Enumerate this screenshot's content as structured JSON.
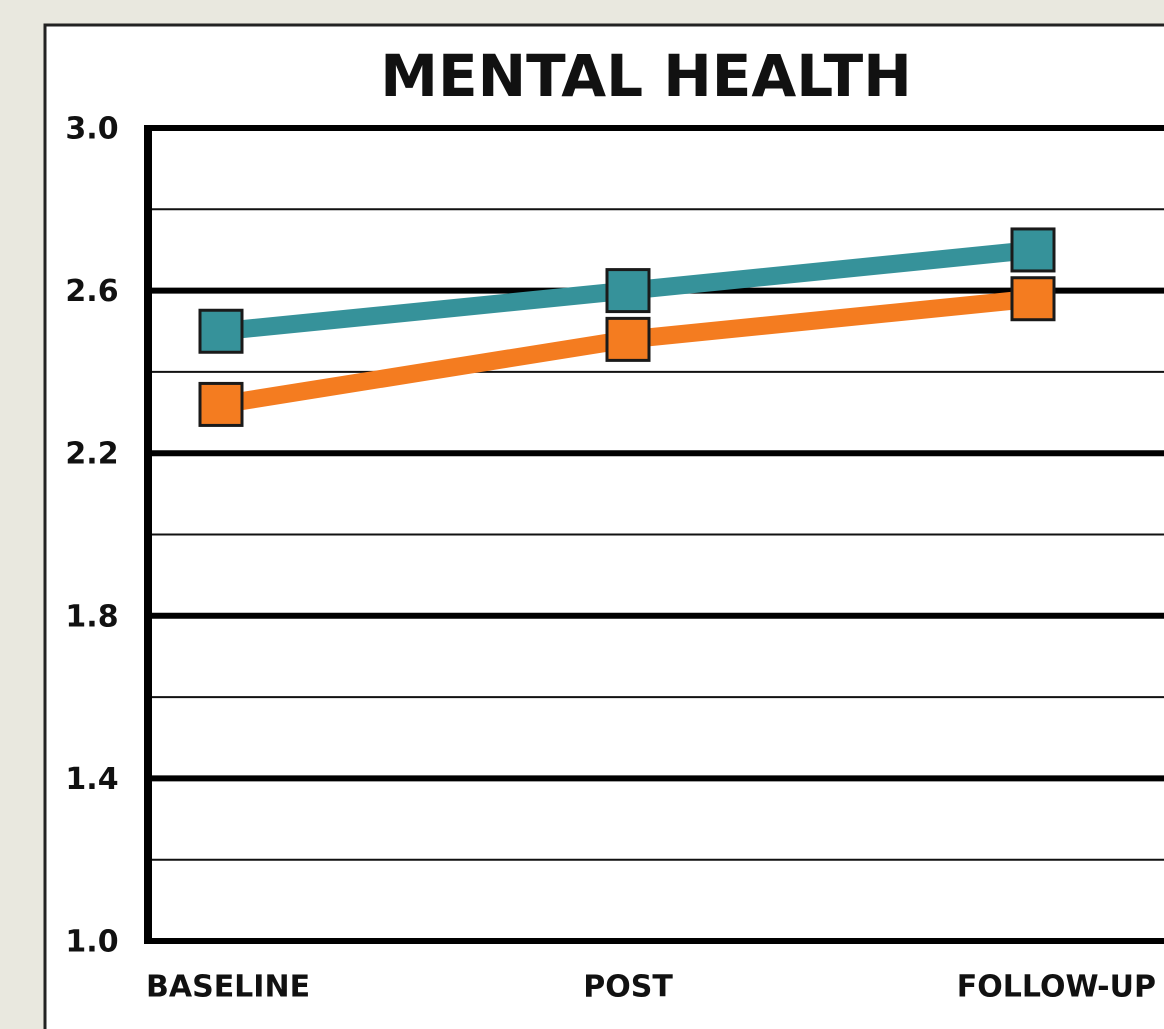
{
  "chart_data": {
    "type": "line",
    "title": "MENTAL HEALTH",
    "categories": [
      "BASELINE",
      "POST",
      "FOLLOW-UP"
    ],
    "series": [
      {
        "color": "#36929a",
        "values": [
          2.5,
          2.6,
          2.7
        ]
      },
      {
        "color": "#f47c20",
        "values": [
          2.32,
          2.48,
          2.58
        ]
      }
    ],
    "ylim": [
      1.0,
      3.0
    ],
    "yticks": [
      {
        "value": 1,
        "label": "1.0"
      },
      1.4,
      1.8,
      2.2,
      2.6,
      {
        "value": 3,
        "label": "3.0"
      }
    ],
    "yminor": [
      1.2,
      1.6,
      2.0,
      2.4,
      2.8
    ],
    "grid": true
  }
}
